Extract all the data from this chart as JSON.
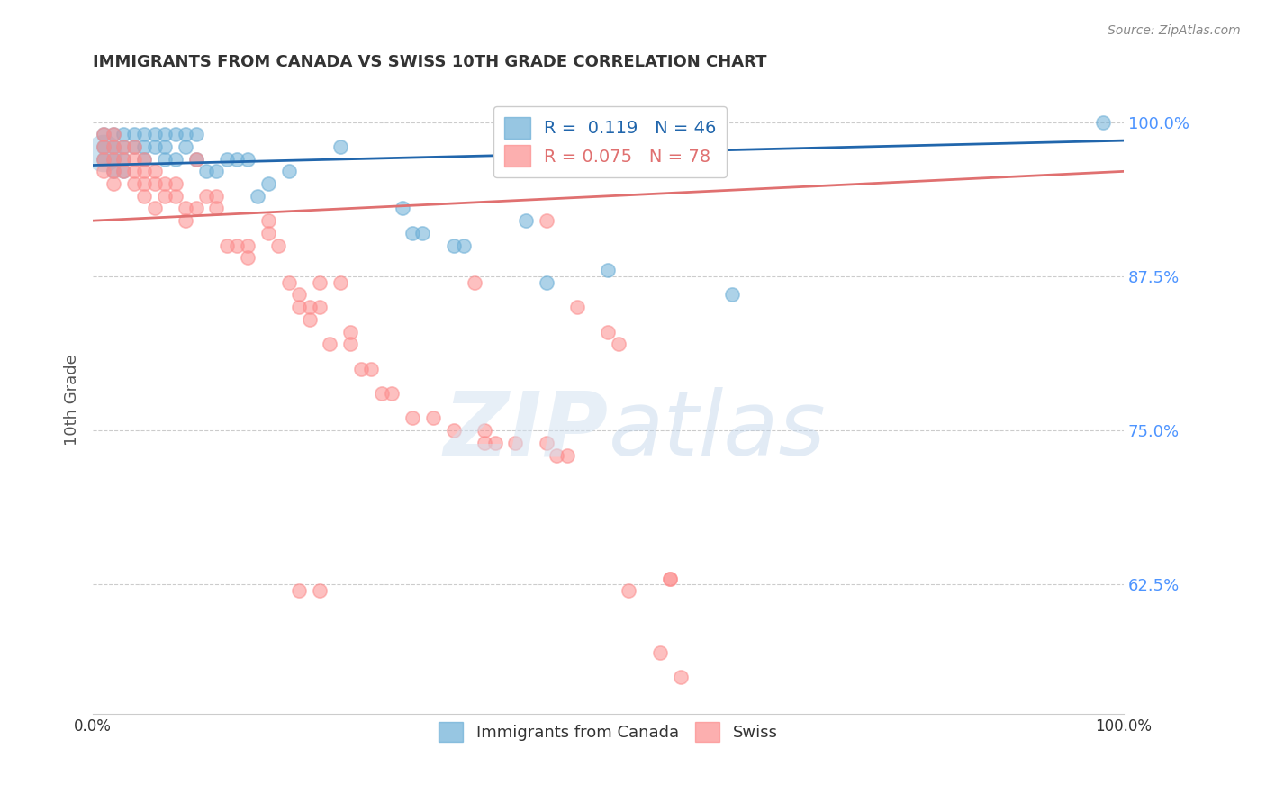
{
  "title": "IMMIGRANTS FROM CANADA VS SWISS 10TH GRADE CORRELATION CHART",
  "source": "Source: ZipAtlas.com",
  "ylabel": "10th Grade",
  "xlim": [
    0.0,
    1.0
  ],
  "ylim": [
    0.52,
    1.03
  ],
  "yticks": [
    0.625,
    0.75,
    0.875,
    1.0
  ],
  "ytick_labels": [
    "62.5%",
    "75.0%",
    "87.5%",
    "100.0%"
  ],
  "canada_color": "#6baed6",
  "swiss_color": "#fc8d8d",
  "canada_line_color": "#2166ac",
  "swiss_line_color": "#e07070",
  "legend_r_canada": "0.119",
  "legend_n_canada": "46",
  "legend_r_swiss": "0.075",
  "legend_n_swiss": "78",
  "canada_points": [
    [
      0.01,
      0.99
    ],
    [
      0.01,
      0.98
    ],
    [
      0.01,
      0.97
    ],
    [
      0.02,
      0.99
    ],
    [
      0.02,
      0.98
    ],
    [
      0.02,
      0.97
    ],
    [
      0.02,
      0.96
    ],
    [
      0.03,
      0.99
    ],
    [
      0.03,
      0.98
    ],
    [
      0.03,
      0.97
    ],
    [
      0.03,
      0.96
    ],
    [
      0.04,
      0.99
    ],
    [
      0.04,
      0.98
    ],
    [
      0.05,
      0.99
    ],
    [
      0.05,
      0.98
    ],
    [
      0.05,
      0.97
    ],
    [
      0.06,
      0.99
    ],
    [
      0.06,
      0.98
    ],
    [
      0.07,
      0.99
    ],
    [
      0.07,
      0.98
    ],
    [
      0.07,
      0.97
    ],
    [
      0.08,
      0.99
    ],
    [
      0.08,
      0.97
    ],
    [
      0.09,
      0.99
    ],
    [
      0.09,
      0.98
    ],
    [
      0.1,
      0.99
    ],
    [
      0.1,
      0.97
    ],
    [
      0.11,
      0.96
    ],
    [
      0.12,
      0.96
    ],
    [
      0.13,
      0.97
    ],
    [
      0.14,
      0.97
    ],
    [
      0.15,
      0.97
    ],
    [
      0.16,
      0.94
    ],
    [
      0.17,
      0.95
    ],
    [
      0.19,
      0.96
    ],
    [
      0.24,
      0.98
    ],
    [
      0.3,
      0.93
    ],
    [
      0.31,
      0.91
    ],
    [
      0.32,
      0.91
    ],
    [
      0.35,
      0.9
    ],
    [
      0.36,
      0.9
    ],
    [
      0.42,
      0.92
    ],
    [
      0.44,
      0.87
    ],
    [
      0.5,
      0.88
    ],
    [
      0.62,
      0.86
    ],
    [
      0.98,
      1.0
    ]
  ],
  "swiss_points": [
    [
      0.01,
      0.99
    ],
    [
      0.01,
      0.98
    ],
    [
      0.01,
      0.97
    ],
    [
      0.01,
      0.96
    ],
    [
      0.02,
      0.99
    ],
    [
      0.02,
      0.98
    ],
    [
      0.02,
      0.97
    ],
    [
      0.02,
      0.96
    ],
    [
      0.02,
      0.95
    ],
    [
      0.03,
      0.98
    ],
    [
      0.03,
      0.97
    ],
    [
      0.03,
      0.96
    ],
    [
      0.04,
      0.98
    ],
    [
      0.04,
      0.97
    ],
    [
      0.04,
      0.96
    ],
    [
      0.04,
      0.95
    ],
    [
      0.05,
      0.97
    ],
    [
      0.05,
      0.96
    ],
    [
      0.05,
      0.95
    ],
    [
      0.05,
      0.94
    ],
    [
      0.06,
      0.96
    ],
    [
      0.06,
      0.95
    ],
    [
      0.06,
      0.93
    ],
    [
      0.07,
      0.95
    ],
    [
      0.07,
      0.94
    ],
    [
      0.08,
      0.95
    ],
    [
      0.08,
      0.94
    ],
    [
      0.09,
      0.93
    ],
    [
      0.09,
      0.92
    ],
    [
      0.1,
      0.97
    ],
    [
      0.1,
      0.93
    ],
    [
      0.11,
      0.94
    ],
    [
      0.12,
      0.94
    ],
    [
      0.12,
      0.93
    ],
    [
      0.13,
      0.9
    ],
    [
      0.14,
      0.9
    ],
    [
      0.15,
      0.9
    ],
    [
      0.15,
      0.89
    ],
    [
      0.17,
      0.92
    ],
    [
      0.17,
      0.91
    ],
    [
      0.18,
      0.9
    ],
    [
      0.19,
      0.87
    ],
    [
      0.2,
      0.86
    ],
    [
      0.2,
      0.85
    ],
    [
      0.21,
      0.85
    ],
    [
      0.21,
      0.84
    ],
    [
      0.22,
      0.87
    ],
    [
      0.22,
      0.85
    ],
    [
      0.23,
      0.82
    ],
    [
      0.24,
      0.87
    ],
    [
      0.25,
      0.83
    ],
    [
      0.25,
      0.82
    ],
    [
      0.26,
      0.8
    ],
    [
      0.27,
      0.8
    ],
    [
      0.28,
      0.78
    ],
    [
      0.29,
      0.78
    ],
    [
      0.31,
      0.76
    ],
    [
      0.33,
      0.76
    ],
    [
      0.35,
      0.75
    ],
    [
      0.37,
      0.87
    ],
    [
      0.38,
      0.75
    ],
    [
      0.38,
      0.74
    ],
    [
      0.39,
      0.74
    ],
    [
      0.41,
      0.74
    ],
    [
      0.44,
      0.92
    ],
    [
      0.44,
      0.74
    ],
    [
      0.45,
      0.73
    ],
    [
      0.46,
      0.73
    ],
    [
      0.47,
      0.85
    ],
    [
      0.5,
      0.83
    ],
    [
      0.51,
      0.82
    ],
    [
      0.52,
      0.62
    ],
    [
      0.55,
      0.57
    ],
    [
      0.56,
      0.63
    ],
    [
      0.56,
      0.63
    ],
    [
      0.57,
      0.55
    ],
    [
      0.2,
      0.62
    ],
    [
      0.22,
      0.62
    ]
  ],
  "canada_line_y": [
    0.965,
    0.985
  ],
  "swiss_line_y": [
    0.92,
    0.96
  ],
  "background_color": "#ffffff",
  "title_color": "#333333",
  "axis_label_color": "#555555",
  "tick_color": "#4d94ff",
  "grid_color": "#cccccc"
}
